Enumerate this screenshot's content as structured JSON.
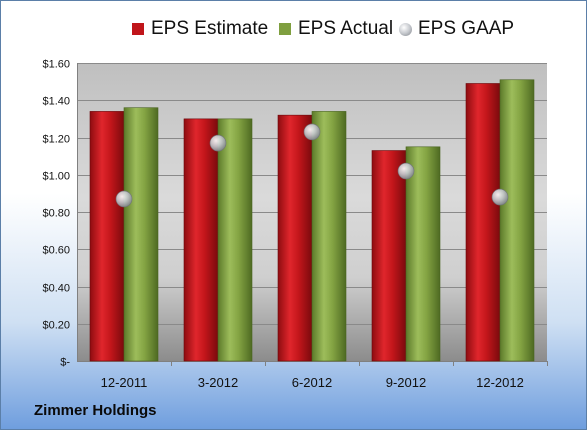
{
  "chart_data": {
    "type": "bar",
    "title": "",
    "xlabel": "",
    "ylabel": "",
    "categories": [
      "12-2011",
      "3-2012",
      "6-2012",
      "9-2012",
      "12-2012"
    ],
    "series": [
      {
        "name": "EPS Estimate",
        "kind": "bar",
        "color": "#c0151a",
        "values": [
          1.34,
          1.3,
          1.32,
          1.13,
          1.49
        ]
      },
      {
        "name": "EPS Actual",
        "kind": "bar",
        "color": "#7f9f3f",
        "values": [
          1.36,
          1.3,
          1.34,
          1.15,
          1.51
        ]
      },
      {
        "name": "EPS GAAP",
        "kind": "marker",
        "color": "#b9bcc2",
        "values": [
          0.87,
          1.17,
          1.23,
          1.02,
          0.88
        ]
      }
    ],
    "ylim": [
      0,
      1.6
    ],
    "yticks": [
      0,
      0.2,
      0.4,
      0.6,
      0.8,
      1.0,
      1.2,
      1.4,
      1.6
    ],
    "ytick_labels": [
      "$-",
      "$0.20",
      "$0.40",
      "$0.60",
      "$0.80",
      "$1.00",
      "$1.20",
      "$1.40",
      "$1.60"
    ],
    "grid": true,
    "legend_position": "top"
  },
  "company_name": "Zimmer Holdings"
}
